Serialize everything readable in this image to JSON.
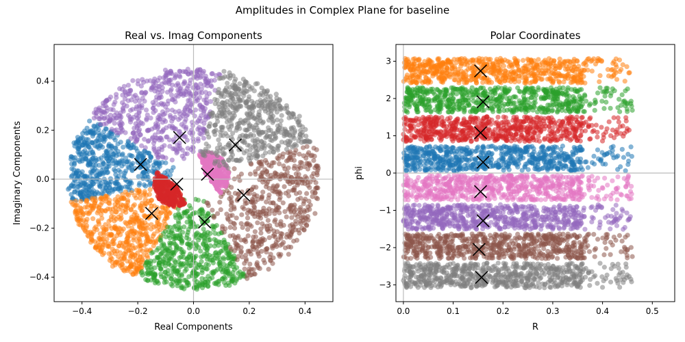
{
  "suptitle": "Amplitudes in Complex Plane for baseline",
  "chart_data": [
    {
      "type": "scatter",
      "title": "Real vs. Imag Components",
      "xlabel": "Real Components",
      "ylabel": "Imaginary Components",
      "xlim": [
        -0.5,
        0.5
      ],
      "ylim": [
        -0.5,
        0.55
      ],
      "xticks": [
        -0.4,
        -0.2,
        0.0,
        0.2,
        0.4
      ],
      "xtick_labels": [
        "−0.4",
        "−0.2",
        "0.0",
        "0.2",
        "0.4"
      ],
      "yticks": [
        -0.4,
        -0.2,
        0.0,
        0.2,
        0.4
      ],
      "ytick_labels": [
        "−0.4",
        "−0.2",
        "0.0",
        "0.2",
        "0.4"
      ],
      "reference_lines": {
        "x": 0,
        "y": 0
      },
      "clusters": [
        {
          "color": "#1f77b4",
          "centroid": [
            -0.19,
            0.06
          ],
          "phi_range": [
            0.0,
            0.785
          ],
          "r_max": 0.45
        },
        {
          "color": "#ff7f0e",
          "centroid": [
            -0.15,
            -0.14
          ],
          "phi_range": [
            2.355,
            3.14
          ],
          "r_max": 0.45
        },
        {
          "color": "#2ca02c",
          "centroid": [
            0.04,
            -0.175
          ],
          "phi_range": [
            1.57,
            2.355
          ],
          "r_max": 0.45
        },
        {
          "color": "#d62728",
          "centroid": [
            -0.06,
            -0.02
          ],
          "phi_range": [
            0.785,
            1.57
          ],
          "r_max": 0.45
        },
        {
          "color": "#9467bd",
          "centroid": [
            -0.05,
            0.17
          ],
          "phi_range": [
            -1.57,
            -0.785
          ],
          "r_max": 0.45
        },
        {
          "color": "#8c564b",
          "centroid": [
            0.18,
            -0.065
          ],
          "phi_range": [
            -2.355,
            -1.57
          ],
          "r_max": 0.45
        },
        {
          "color": "#e377c2",
          "centroid": [
            0.05,
            0.02
          ],
          "phi_range": [
            -0.785,
            0.0
          ],
          "r_max": 0.45
        },
        {
          "color": "#7f7f7f",
          "centroid": [
            0.15,
            0.14
          ],
          "phi_range": [
            -3.14,
            -2.355
          ],
          "r_max": 0.45
        }
      ],
      "marker": "x"
    },
    {
      "type": "scatter",
      "title": "Polar Coordinates",
      "xlabel": "R",
      "ylabel": "phi",
      "xlim": [
        -0.015,
        0.545
      ],
      "ylim": [
        -3.45,
        3.45
      ],
      "xticks": [
        0.0,
        0.1,
        0.2,
        0.3,
        0.4,
        0.5
      ],
      "xtick_labels": [
        "0.0",
        "0.1",
        "0.2",
        "0.3",
        "0.4",
        "0.5"
      ],
      "yticks": [
        -3,
        -2,
        -1,
        0,
        1,
        2,
        3
      ],
      "ytick_labels": [
        "−3",
        "−2",
        "−1",
        "0",
        "1",
        "2",
        "3"
      ],
      "reference_lines": {
        "x": 0,
        "y": 0
      },
      "bands": [
        {
          "color": "#ff7f0e",
          "phi_range": [
            2.355,
            3.14
          ],
          "r_max": 0.36,
          "centroid": [
            0.155,
            2.74
          ]
        },
        {
          "color": "#2ca02c",
          "phi_range": [
            1.57,
            2.355
          ],
          "r_max": 0.36,
          "centroid": [
            0.16,
            1.91
          ]
        },
        {
          "color": "#d62728",
          "phi_range": [
            0.785,
            1.57
          ],
          "r_max": 0.36,
          "centroid": [
            0.155,
            1.08
          ]
        },
        {
          "color": "#1f77b4",
          "phi_range": [
            0.0,
            0.785
          ],
          "r_max": 0.36,
          "centroid": [
            0.16,
            0.29
          ]
        },
        {
          "color": "#e377c2",
          "phi_range": [
            -0.785,
            0.0
          ],
          "r_max": 0.36,
          "centroid": [
            0.155,
            -0.5
          ]
        },
        {
          "color": "#9467bd",
          "phi_range": [
            -1.57,
            -0.785
          ],
          "r_max": 0.36,
          "centroid": [
            0.16,
            -1.28
          ]
        },
        {
          "color": "#8c564b",
          "phi_range": [
            -2.355,
            -1.57
          ],
          "r_max": 0.36,
          "centroid": [
            0.152,
            -2.05
          ]
        },
        {
          "color": "#7f7f7f",
          "phi_range": [
            -3.14,
            -2.355
          ],
          "r_max": 0.36,
          "centroid": [
            0.157,
            -2.8
          ]
        }
      ],
      "marker": "x"
    }
  ]
}
